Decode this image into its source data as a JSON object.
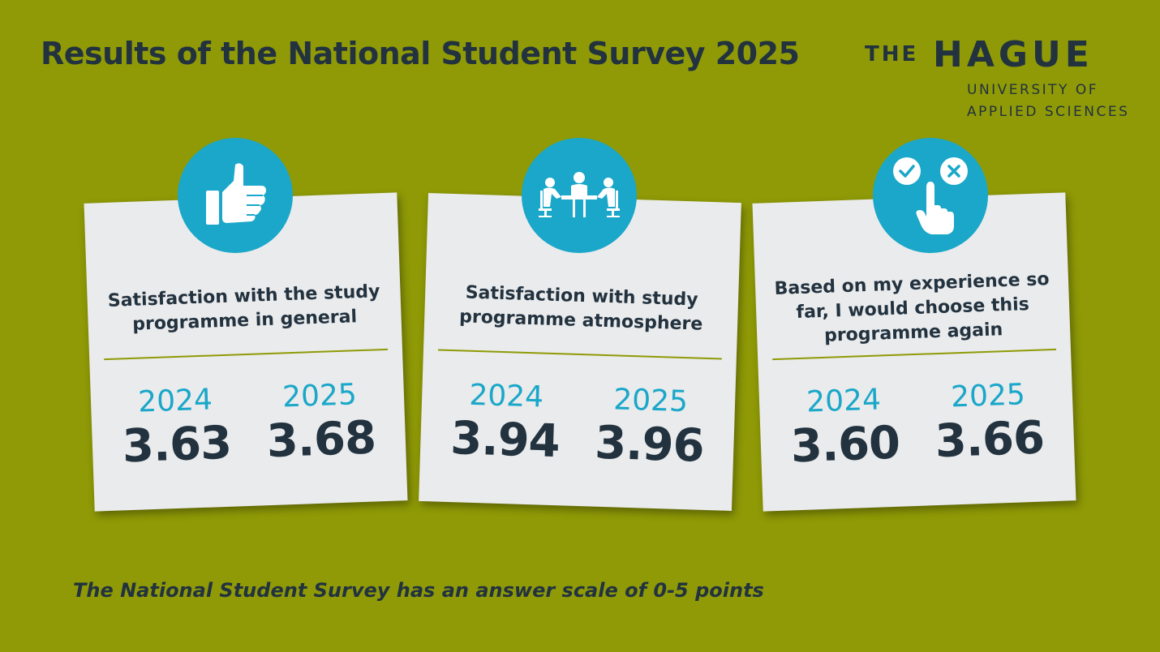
{
  "header": {
    "title": "Results of the National Student Survey 2025"
  },
  "logo": {
    "the": "THE",
    "hague": "HAGUE",
    "line1": "UNIVERSITY OF",
    "line2": "APPLIED SCIENCES"
  },
  "cards": [
    {
      "icon": "thumbs-up-icon",
      "heading": "Satisfaction with the study programme in general",
      "year_a": "2024",
      "score_a": "3.63",
      "year_b": "2025",
      "score_b": "3.68"
    },
    {
      "icon": "meeting-table-icon",
      "heading": "Satisfaction with study programme atmosphere",
      "year_a": "2024",
      "score_a": "3.94",
      "year_b": "2025",
      "score_b": "3.96"
    },
    {
      "icon": "choice-hand-icon",
      "heading": "Based on my experience so far, I would choose this programme again",
      "year_a": "2024",
      "score_a": "3.60",
      "year_b": "2025",
      "score_b": "3.66"
    }
  ],
  "footnote": "The National Student Survey has an answer scale of 0-5 points",
  "colors": {
    "background": "#8f9a06",
    "card": "#eaebec",
    "accent": "#1aa7c9",
    "text": "#22323f"
  }
}
